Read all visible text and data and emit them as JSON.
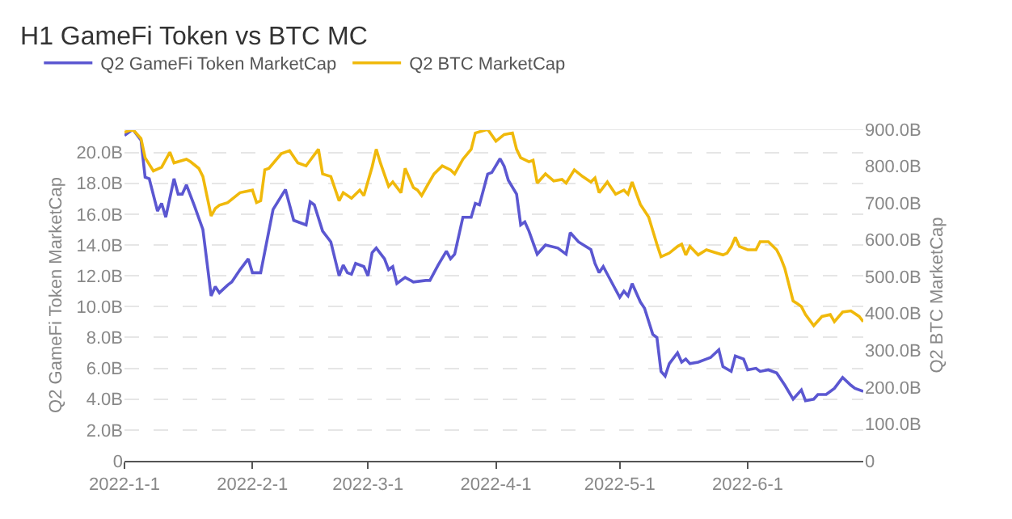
{
  "chart_data": {
    "type": "line",
    "title": "H1 GameFi Token vs BTC MC",
    "ylabel": "Q2 GameFi Token MarketCap",
    "y2label": "Q2 BTC MarketCap",
    "series": [
      {
        "name": "Q2 GameFi Token MarketCap",
        "color": "#5b57d1",
        "x": [
          "2022-01-01",
          "2022-01-03",
          "2022-01-05",
          "2022-01-06",
          "2022-01-07",
          "2022-01-09",
          "2022-01-10",
          "2022-01-11",
          "2022-01-13",
          "2022-01-14",
          "2022-01-15",
          "2022-01-16",
          "2022-01-18",
          "2022-01-20",
          "2022-01-22",
          "2022-01-23",
          "2022-01-24",
          "2022-01-26",
          "2022-01-27",
          "2022-01-29",
          "2022-01-31",
          "2022-02-01",
          "2022-02-03",
          "2022-02-06",
          "2022-02-09",
          "2022-02-11",
          "2022-02-14",
          "2022-02-15",
          "2022-02-16",
          "2022-02-18",
          "2022-02-20",
          "2022-02-22",
          "2022-02-23",
          "2022-02-24",
          "2022-02-25",
          "2022-02-26",
          "2022-02-28",
          "2022-03-01",
          "2022-03-02",
          "2022-03-03",
          "2022-03-05",
          "2022-03-06",
          "2022-03-07",
          "2022-03-08",
          "2022-03-10",
          "2022-03-12",
          "2022-03-15",
          "2022-03-16",
          "2022-03-18",
          "2022-03-20",
          "2022-03-21",
          "2022-03-22",
          "2022-03-24",
          "2022-03-26",
          "2022-03-27",
          "2022-03-28",
          "2022-03-30",
          "2022-03-31",
          "2022-04-02",
          "2022-04-03",
          "2022-04-04",
          "2022-04-06",
          "2022-04-07",
          "2022-04-08",
          "2022-04-09",
          "2022-04-11",
          "2022-04-13",
          "2022-04-16",
          "2022-04-18",
          "2022-04-19",
          "2022-04-21",
          "2022-04-24",
          "2022-04-25",
          "2022-04-26",
          "2022-04-27",
          "2022-04-28",
          "2022-05-01",
          "2022-05-02",
          "2022-05-03",
          "2022-05-04",
          "2022-05-06",
          "2022-05-07",
          "2022-05-09",
          "2022-05-10",
          "2022-05-11",
          "2022-05-12",
          "2022-05-13",
          "2022-05-15",
          "2022-05-16",
          "2022-05-17",
          "2022-05-18",
          "2022-05-20",
          "2022-05-22",
          "2022-05-23",
          "2022-05-25",
          "2022-05-26",
          "2022-05-28",
          "2022-05-29",
          "2022-05-31",
          "2022-06-01",
          "2022-06-03",
          "2022-06-04",
          "2022-06-06",
          "2022-06-08",
          "2022-06-10",
          "2022-06-12",
          "2022-06-14",
          "2022-06-15",
          "2022-06-17",
          "2022-06-18",
          "2022-06-20",
          "2022-06-22",
          "2022-06-24",
          "2022-06-26",
          "2022-06-27",
          "2022-06-29"
        ],
        "values": [
          21.1,
          21.5,
          20.8,
          18.4,
          18.3,
          16.2,
          16.7,
          15.8,
          18.3,
          17.3,
          17.3,
          17.9,
          16.5,
          15.0,
          10.7,
          11.3,
          10.9,
          11.4,
          11.6,
          12.4,
          13.1,
          12.2,
          12.2,
          16.3,
          17.6,
          15.6,
          15.3,
          16.8,
          16.6,
          14.9,
          14.2,
          12.0,
          12.7,
          12.2,
          12.1,
          12.8,
          12.6,
          12.0,
          13.5,
          13.8,
          13.1,
          12.4,
          12.6,
          11.5,
          11.9,
          11.6,
          11.7,
          11.7,
          12.7,
          13.6,
          13.1,
          13.4,
          15.8,
          15.8,
          16.7,
          16.6,
          18.6,
          18.7,
          19.6,
          19.1,
          18.2,
          17.3,
          15.3,
          15.5,
          14.9,
          13.4,
          14.0,
          13.8,
          13.4,
          14.8,
          14.2,
          13.7,
          12.8,
          12.2,
          12.6,
          12.1,
          10.6,
          11.0,
          10.7,
          11.5,
          10.3,
          9.9,
          8.2,
          8.0,
          5.8,
          5.5,
          6.3,
          7.0,
          6.4,
          6.6,
          6.3,
          6.4,
          6.6,
          6.7,
          7.2,
          6.1,
          5.8,
          6.8,
          6.6,
          5.9,
          6.0,
          5.8,
          5.9,
          5.7,
          4.9,
          4.0,
          4.6,
          3.9,
          4.0,
          4.3,
          4.3,
          4.7,
          5.4,
          4.9,
          4.7,
          4.5
        ]
      },
      {
        "name": "Q2 BTC MarketCap",
        "color": "#f0b90b",
        "axis": "y2",
        "x": [
          "2022-01-01",
          "2022-01-03",
          "2022-01-05",
          "2022-01-06",
          "2022-01-08",
          "2022-01-10",
          "2022-01-12",
          "2022-01-13",
          "2022-01-16",
          "2022-01-17",
          "2022-01-19",
          "2022-01-20",
          "2022-01-22",
          "2022-01-23",
          "2022-01-24",
          "2022-01-26",
          "2022-01-29",
          "2022-02-01",
          "2022-02-02",
          "2022-02-03",
          "2022-02-04",
          "2022-02-05",
          "2022-02-08",
          "2022-02-10",
          "2022-02-12",
          "2022-02-14",
          "2022-02-15",
          "2022-02-17",
          "2022-02-18",
          "2022-02-20",
          "2022-02-22",
          "2022-02-23",
          "2022-02-25",
          "2022-02-27",
          "2022-02-28",
          "2022-03-02",
          "2022-03-03",
          "2022-03-04",
          "2022-03-06",
          "2022-03-07",
          "2022-03-09",
          "2022-03-10",
          "2022-03-12",
          "2022-03-13",
          "2022-03-14",
          "2022-03-16",
          "2022-03-17",
          "2022-03-19",
          "2022-03-21",
          "2022-03-22",
          "2022-03-24",
          "2022-03-26",
          "2022-03-27",
          "2022-03-30",
          "2022-04-01",
          "2022-04-03",
          "2022-04-05",
          "2022-04-06",
          "2022-04-07",
          "2022-04-09",
          "2022-04-10",
          "2022-04-11",
          "2022-04-13",
          "2022-04-15",
          "2022-04-17",
          "2022-04-18",
          "2022-04-20",
          "2022-04-22",
          "2022-04-24",
          "2022-04-25",
          "2022-04-26",
          "2022-04-28",
          "2022-04-30",
          "2022-05-02",
          "2022-05-03",
          "2022-05-04",
          "2022-05-06",
          "2022-05-08",
          "2022-05-09",
          "2022-05-10",
          "2022-05-11",
          "2022-05-13",
          "2022-05-15",
          "2022-05-16",
          "2022-05-17",
          "2022-05-18",
          "2022-05-20",
          "2022-05-22",
          "2022-05-24",
          "2022-05-26",
          "2022-05-27",
          "2022-05-28",
          "2022-05-29",
          "2022-05-30",
          "2022-06-01",
          "2022-06-03",
          "2022-06-04",
          "2022-06-06",
          "2022-06-08",
          "2022-06-09",
          "2022-06-10",
          "2022-06-12",
          "2022-06-13",
          "2022-06-14",
          "2022-06-15",
          "2022-06-17",
          "2022-06-19",
          "2022-06-21",
          "2022-06-22",
          "2022-06-24",
          "2022-06-26",
          "2022-06-28",
          "2022-06-29"
        ],
        "values": [
          892,
          900,
          875,
          823,
          787,
          797,
          838,
          809,
          819,
          812,
          794,
          772,
          665,
          685,
          694,
          701,
          728,
          735,
          701,
          706,
          790,
          794,
          834,
          842,
          809,
          801,
          816,
          846,
          779,
          772,
          706,
          728,
          713,
          735,
          720,
          798,
          846,
          809,
          745,
          757,
          728,
          794,
          742,
          735,
          720,
          760,
          779,
          801,
          790,
          779,
          819,
          846,
          890,
          900,
          868,
          886,
          890,
          846,
          823,
          812,
          816,
          754,
          779,
          760,
          764,
          754,
          790,
          772,
          757,
          768,
          728,
          757,
          724,
          735,
          724,
          757,
          696,
          662,
          625,
          588,
          554,
          564,
          582,
          588,
          559,
          582,
          559,
          573,
          566,
          559,
          564,
          581,
          607,
          582,
          573,
          573,
          595,
          595,
          573,
          551,
          522,
          434,
          427,
          419,
          397,
          367,
          392,
          397,
          378,
          404,
          407,
          392,
          378
        ]
      }
    ],
    "xlim": [
      "2022-01-01",
      "2022-06-29"
    ],
    "xticks": [
      {
        "value": "2022-01-01",
        "label": "2022-1-1"
      },
      {
        "value": "2022-02-01",
        "label": "2022-2-1"
      },
      {
        "value": "2022-03-01",
        "label": "2022-3-1"
      },
      {
        "value": "2022-04-01",
        "label": "2022-4-1"
      },
      {
        "value": "2022-05-01",
        "label": "2022-5-1"
      },
      {
        "value": "2022-06-01",
        "label": "2022-6-1"
      }
    ],
    "ylim": [
      0,
      21.5
    ],
    "yticks": [
      0,
      {
        "value": 2,
        "label": "2.0B"
      },
      {
        "value": 4,
        "label": "4.0B"
      },
      {
        "value": 6,
        "label": "6.0B"
      },
      {
        "value": 8,
        "label": "8.0B"
      },
      {
        "value": 10,
        "label": "10.0B"
      },
      {
        "value": 12,
        "label": "12.0B"
      },
      {
        "value": 14,
        "label": "14.0B"
      },
      {
        "value": 16,
        "label": "16.0B"
      },
      {
        "value": 18,
        "label": "18.0B"
      },
      {
        "value": 20,
        "label": "20.0B"
      }
    ],
    "y2lim": [
      0,
      900
    ],
    "y2ticks": [
      0,
      {
        "value": 100,
        "label": "100.0B"
      },
      {
        "value": 200,
        "label": "200.0B"
      },
      {
        "value": 300,
        "label": "300.0B"
      },
      {
        "value": 400,
        "label": "400.0B"
      },
      {
        "value": 500,
        "label": "500.0B"
      },
      {
        "value": 600,
        "label": "600.0B"
      },
      {
        "value": 700,
        "label": "700.0B"
      },
      {
        "value": 800,
        "label": "800.0B"
      },
      {
        "value": 900,
        "label": "900.0B"
      }
    ],
    "grid": "y",
    "legend": "top left",
    "marker": "none",
    "line_style": "solid"
  }
}
